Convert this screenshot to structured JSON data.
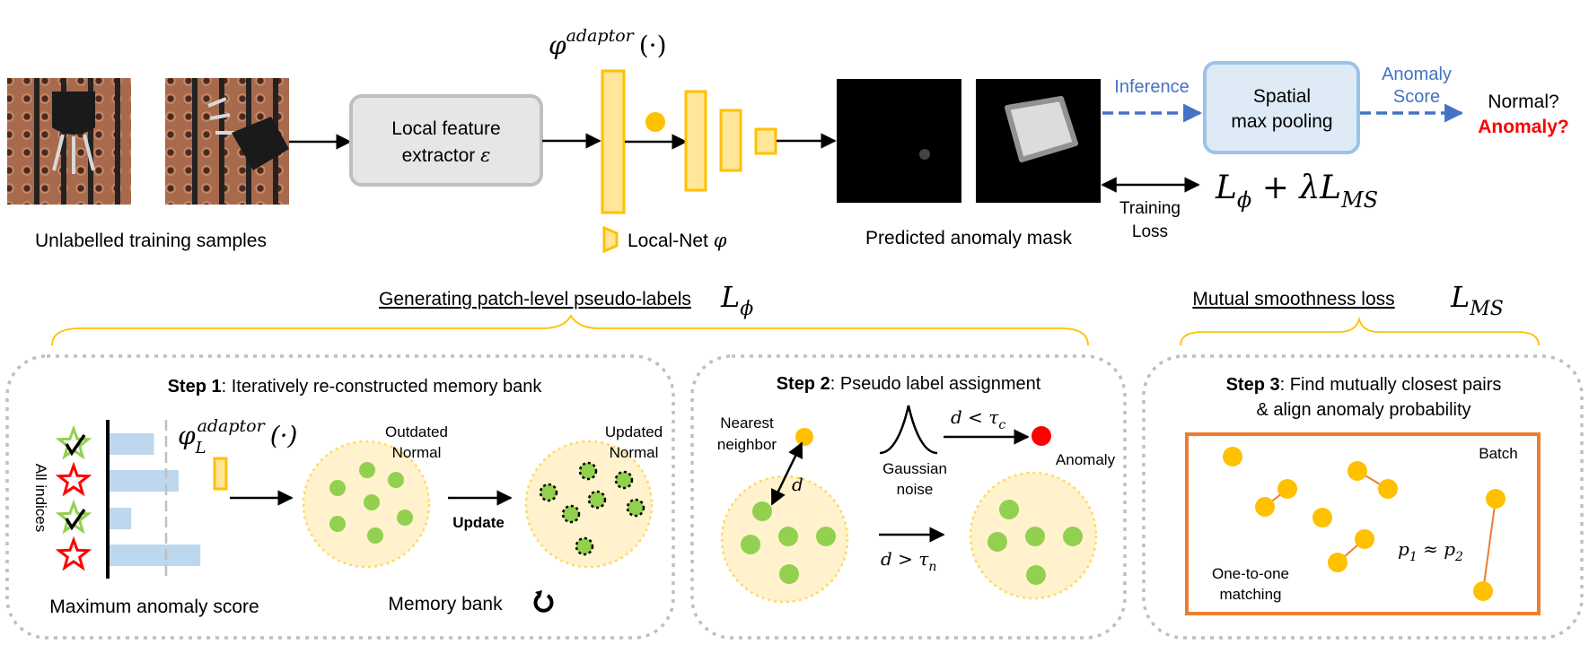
{
  "top": {
    "samples_caption": "Unlabelled training samples",
    "extractor_line1": "Local feature",
    "extractor_line2": "extractor",
    "extractor_symbol": "ε",
    "adaptor_base": "φ",
    "adaptor_sup": "adaptor",
    "adaptor_arg": "(·)",
    "localnet_label": "Local-Net",
    "localnet_symbol": "φ",
    "mask_caption": "Predicted anomaly mask",
    "inference_label": "Inference",
    "pooling_line1": "Spatial",
    "pooling_line2": "max pooling",
    "score_line1": "Anomaly",
    "score_line2": "Score",
    "normal_q": "Normal?",
    "anomaly_q": "Anomaly?",
    "training_line1": "Training",
    "training_line2": "Loss",
    "loss_formula": "Lϕ + λLMS"
  },
  "sections": {
    "pseudo_labels_title": "Generating patch-level pseudo-labels",
    "pseudo_labels_symbol": "Lϕ",
    "smoothness_title": "Mutual smoothness loss",
    "smoothness_symbol": "LMS"
  },
  "step1": {
    "title_bold": "Step 1",
    "title_rest": ": Iteratively re-constructed memory bank",
    "all_indices": "All indices",
    "phi_base": "φ",
    "phi_sub": "L",
    "phi_sup": "adaptor",
    "phi_arg": "(·)",
    "outdated_1": "Outdated",
    "outdated_2": "Normal",
    "updated_1": "Updated",
    "updated_2": "Normal",
    "update_label": "Update",
    "max_score": "Maximum anomaly score",
    "memory_bank": "Memory bank",
    "bars": [
      0.45,
      0.7,
      0.22,
      0.92
    ],
    "markers": [
      "check",
      "star",
      "check",
      "star"
    ]
  },
  "step2": {
    "title_bold": "Step 2",
    "title_rest": ": Pseudo label assignment",
    "nearest_1": "Nearest",
    "nearest_2": "neighbor",
    "d_label": "d",
    "gauss_1": "Gaussian",
    "gauss_2": "noise",
    "cond_c": "d < τc",
    "cond_n": "d > τn",
    "anomaly_label": "Anomaly"
  },
  "step3": {
    "title_bold": "Step 3",
    "title_rest": ": Find mutually closest pairs",
    "title_line2": "& align anomaly probability",
    "batch_label": "Batch",
    "approx": "p1 ≈ p2",
    "matching_1": "One-to-one",
    "matching_2": "matching"
  },
  "colors": {
    "yellow": "#FFC000",
    "yellow_fill": "#FFE699",
    "green": "#92D050",
    "red": "#FF0000",
    "blue": "#4472C4",
    "box_gray": "#BFBFBF",
    "orange": "#ED7D31",
    "bar_blue": "#BDD7EE"
  }
}
